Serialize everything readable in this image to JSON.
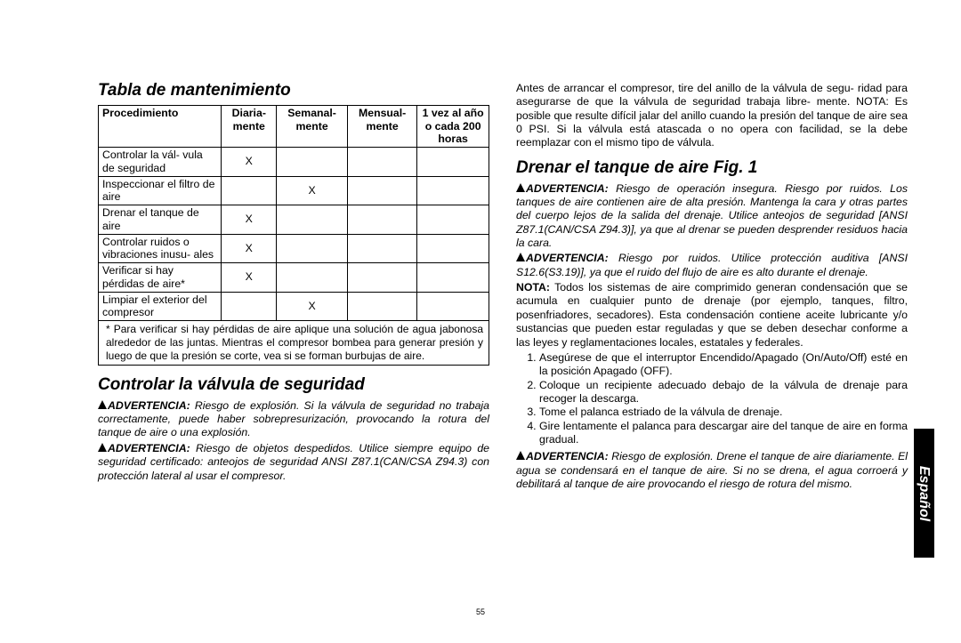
{
  "sideTab": "Español",
  "pageNumber": "55",
  "left": {
    "title1": "Tabla de mantenimiento",
    "table": {
      "headers": [
        "Procedimiento",
        "Diaria-\nmente",
        "Semanal-\nmente",
        "Mensual-\nmente",
        "1 vez al\naño o\ncada 200\nhoras"
      ],
      "rows": [
        {
          "proc": "Controlar la vál-\nvula de seguridad",
          "daily": "X",
          "weekly": "",
          "monthly": "",
          "yearly": ""
        },
        {
          "proc": "Inspeccionar el\nfiltro de aire",
          "daily": "",
          "weekly": "X",
          "monthly": "",
          "yearly": ""
        },
        {
          "proc": "Drenar el tanque\nde aire",
          "daily": "X",
          "weekly": "",
          "monthly": "",
          "yearly": ""
        },
        {
          "proc": "Controlar ruidos o\nvibraciones inusu-\nales",
          "daily": "X",
          "weekly": "",
          "monthly": "",
          "yearly": ""
        },
        {
          "proc": "Verificar si hay\npérdidas de aire*",
          "daily": "X",
          "weekly": "",
          "monthly": "",
          "yearly": ""
        },
        {
          "proc": "Limpiar el exterior\ndel compresor",
          "daily": "",
          "weekly": "X",
          "monthly": "",
          "yearly": ""
        }
      ],
      "footnote": "* Para verificar si hay pérdidas de aire aplique una solución de agua jabonosa alrededor de las juntas. Mientras el compresor bombea para generar presión y luego de que la presión se corte, vea si se forman burbujas de aire."
    },
    "title2": "Controlar la válvula de seguridad",
    "warn1": "Riesgo de explosión. Si la válvula de seguridad no trabaja correctamente, puede haber sobrepresurización, provocando la rotura del tanque de aire o una explosión.",
    "warn2": "Riesgo de objetos despedidos. Utilice siempre equipo de seguridad certificado: anteojos de seguridad ANSI Z87.1(CAN/CSA Z94.3) con protección lateral al usar el compresor."
  },
  "right": {
    "topPara": "Antes de arrancar el compresor, tire del anillo de la válvula de segu-\nridad para asegurarse de que la válvula de seguridad trabaja libre-\nmente. NOTA: Es posible que resulte difícil jalar del anillo cuando la presión del tanque de aire sea 0 PSI. Si la válvula está atascada o no opera con facilidad, se la debe reemplazar con el mismo tipo de válvula.",
    "title": "Drenar el tanque de aire Fig. 1",
    "warn1": "Riesgo de operación insegura. Riesgo por ruidos. Los tanques de aire contienen aire de alta presión. Mantenga la cara y otras partes del cuerpo lejos de la salida del drenaje. Utilice anteojos de seguridad [ANSI Z87.1(CAN/CSA Z94.3)], ya que al drenar se pueden desprender residuos hacia la cara.",
    "warn2": "Riesgo por ruidos. Utilice protección auditiva [ANSI S12.6(S3.19)], ya que el ruido del flujo de aire es alto durante el drenaje.",
    "notaLabel": "NOTA:",
    "nota": " Todos los sistemas de aire comprimido generan condensación que se acumula en cualquier punto de drenaje (por ejemplo, tanques, filtro, posenfriadores, secadores). Esta condensación contiene aceite lubricante y/o sustancias que pueden estar reguladas y que se deben desechar conforme a las leyes y reglamentaciones locales, estatales y federales.",
    "steps": [
      "Asegúrese de que el interruptor Encendido/Apagado (On/Auto/Off) esté en la posición Apagado (OFF).",
      "Coloque un recipiente adecuado debajo de la válvula de drenaje para recoger la descarga.",
      "Tome el palanca estriado de la válvula de drenaje.",
      "Gire lentamente el palanca para descargar aire del tanque de aire en forma gradual."
    ],
    "warn3": "Riesgo de explosión. Drene el tanque de aire diariamente. El agua se condensará en el tanque de aire. Si no se drena, el agua corroerá y debilitará al tanque de aire provocando el riesgo de rotura del mismo.",
    "warnLabel": "ADVERTENCIA:"
  }
}
